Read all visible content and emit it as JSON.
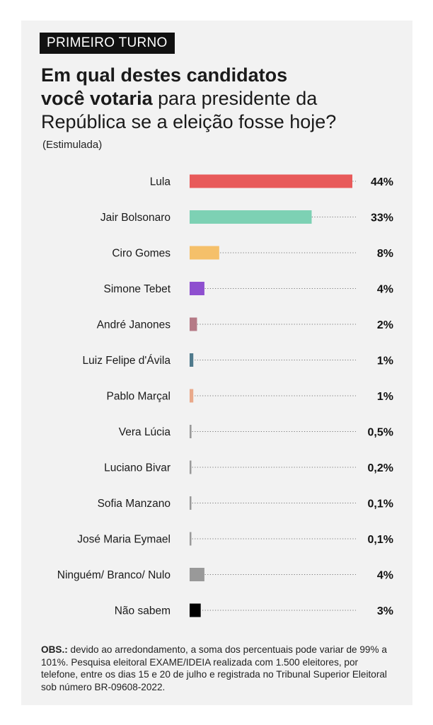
{
  "badge": "PRIMEIRO TURNO",
  "title": {
    "bold_line1": "Em qual destes candidatos",
    "bold_line2": "você votaria",
    "rest_line2": " para presidente da",
    "line3": "República se a eleição fosse hoje?"
  },
  "subtitle": "(Estimulada)",
  "chart_data": {
    "type": "bar",
    "orientation": "horizontal",
    "categories": [
      "Lula",
      "Jair Bolsonaro",
      "Ciro Gomes",
      "Simone Tebet",
      "André Janones",
      "Luiz Felipe d'Ávila",
      "Pablo Marçal",
      "Vera Lúcia",
      "Luciano Bivar",
      "Sofia Manzano",
      "José Maria Eymael",
      "Ninguém/ Branco/ Nulo",
      "Não sabem"
    ],
    "values": [
      44,
      33,
      8,
      4,
      2,
      1,
      1,
      0.5,
      0.2,
      0.1,
      0.1,
      4,
      3
    ],
    "value_labels": [
      "44%",
      "33%",
      "8%",
      "4%",
      "2%",
      "1%",
      "1%",
      "0,5%",
      "0,2%",
      "0,1%",
      "0,1%",
      "4%",
      "3%"
    ],
    "colors": [
      "#e85a5a",
      "#7dd1b4",
      "#f5c06a",
      "#8e4fcf",
      "#b57a86",
      "#4f7a8c",
      "#e9a98a",
      "#999999",
      "#999999",
      "#999999",
      "#999999",
      "#999999",
      "#000000"
    ],
    "xlim": [
      0,
      44
    ],
    "grid": false
  },
  "obs": {
    "label": "OBS.:",
    "text": " devido ao arredondamento, a soma dos percentuais pode variar de 99% a 101%. Pesquisa eleitoral EXAME/IDEIA realizada com 1.500 eleitores, por telefone, entre os dias 15 e 20 de julho e registrada no Tribunal Superior Eleitoral sob número BR-09608-2022."
  }
}
